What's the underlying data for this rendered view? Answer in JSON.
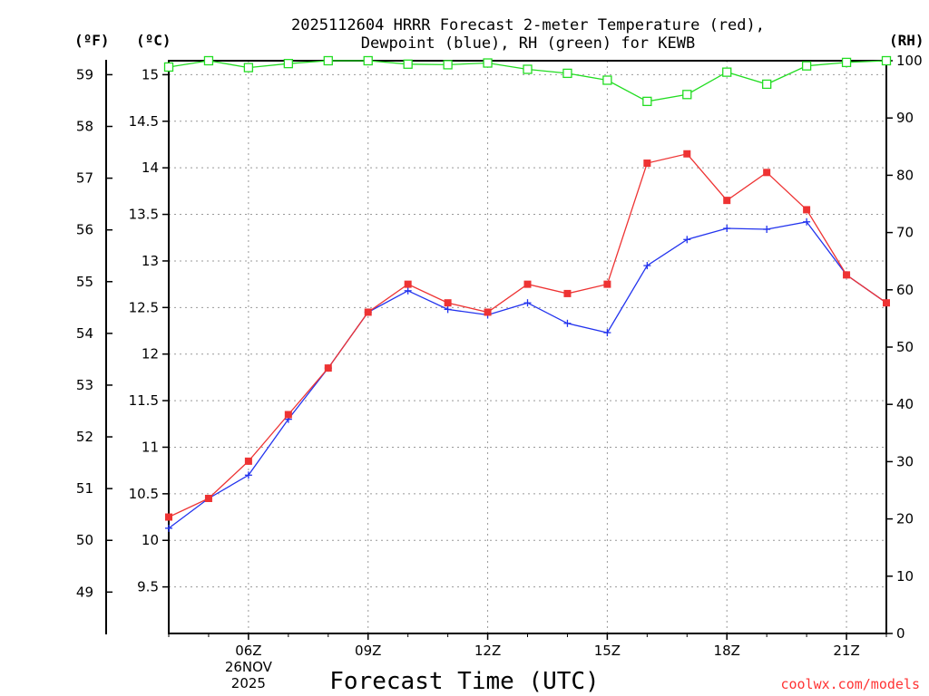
{
  "title_line1": "2025112604 HRRR Forecast 2-meter Temperature (red),",
  "title_line2": "Dewpoint (blue), RH (green) for KEWB",
  "units": {
    "fahrenheit": "(ºF)",
    "celsius": "(ºC)",
    "rh": "(RH)"
  },
  "credit": "coolwx.com/models",
  "colors": {
    "temperature": "#ee3333",
    "dewpoint": "#2233ee",
    "rh": "#22dd22",
    "grid": "#999999"
  },
  "chart_data": {
    "type": "line",
    "title": "2025112604 HRRR Forecast 2-meter Temperature (red), Dewpoint (blue), RH (green) for KEWB",
    "xlabel": "Forecast Time (UTC)",
    "x_hours": [
      4,
      5,
      6,
      7,
      8,
      9,
      10,
      11,
      12,
      13,
      14,
      15,
      16,
      17,
      18,
      19,
      20,
      21,
      22
    ],
    "xlim": [
      4,
      22
    ],
    "x_ticks": [
      {
        "hour": 6,
        "label": "06Z",
        "sub1": "26NOV",
        "sub2": "2025"
      },
      {
        "hour": 9,
        "label": "09Z"
      },
      {
        "hour": 12,
        "label": "12Z"
      },
      {
        "hour": 15,
        "label": "15Z"
      },
      {
        "hour": 18,
        "label": "18Z"
      },
      {
        "hour": 21,
        "label": "21Z"
      }
    ],
    "ylabel_left_c": "°C",
    "ylim_c": [
      9.0,
      15.15
    ],
    "yticks_c": [
      "9.5",
      "10",
      "10.5",
      "11",
      "11.5",
      "12",
      "12.5",
      "13",
      "13.5",
      "14",
      "14.5",
      "15"
    ],
    "yticks_f": [
      "49",
      "50",
      "51",
      "52",
      "53",
      "54",
      "55",
      "56",
      "57",
      "58",
      "59"
    ],
    "ylabel_right": "RH",
    "ylim_rh": [
      0,
      100
    ],
    "yticks_rh": [
      "0",
      "10",
      "20",
      "30",
      "40",
      "50",
      "60",
      "70",
      "80",
      "90",
      "100"
    ],
    "series": [
      {
        "name": "Temperature",
        "unit": "°C",
        "marker": "filled-square",
        "values": [
          10.25,
          10.45,
          10.85,
          11.35,
          11.85,
          12.45,
          12.75,
          12.55,
          12.45,
          12.75,
          12.65,
          12.75,
          14.05,
          14.15,
          13.65,
          13.95,
          13.55,
          12.85,
          12.55
        ]
      },
      {
        "name": "Dewpoint",
        "unit": "°C",
        "marker": "plus",
        "values": [
          10.13,
          10.45,
          10.7,
          11.3,
          11.85,
          12.45,
          12.68,
          12.48,
          12.42,
          12.55,
          12.33,
          12.23,
          12.95,
          13.23,
          13.35,
          13.34,
          13.42,
          12.85,
          12.55
        ]
      },
      {
        "name": "RH",
        "unit": "%",
        "marker": "open-square",
        "values": [
          98.9,
          100,
          98.8,
          99.5,
          100,
          100,
          99.4,
          99.3,
          99.6,
          98.5,
          97.8,
          96.6,
          92.9,
          94.1,
          98.0,
          95.9,
          99.1,
          99.7,
          100
        ]
      }
    ]
  }
}
